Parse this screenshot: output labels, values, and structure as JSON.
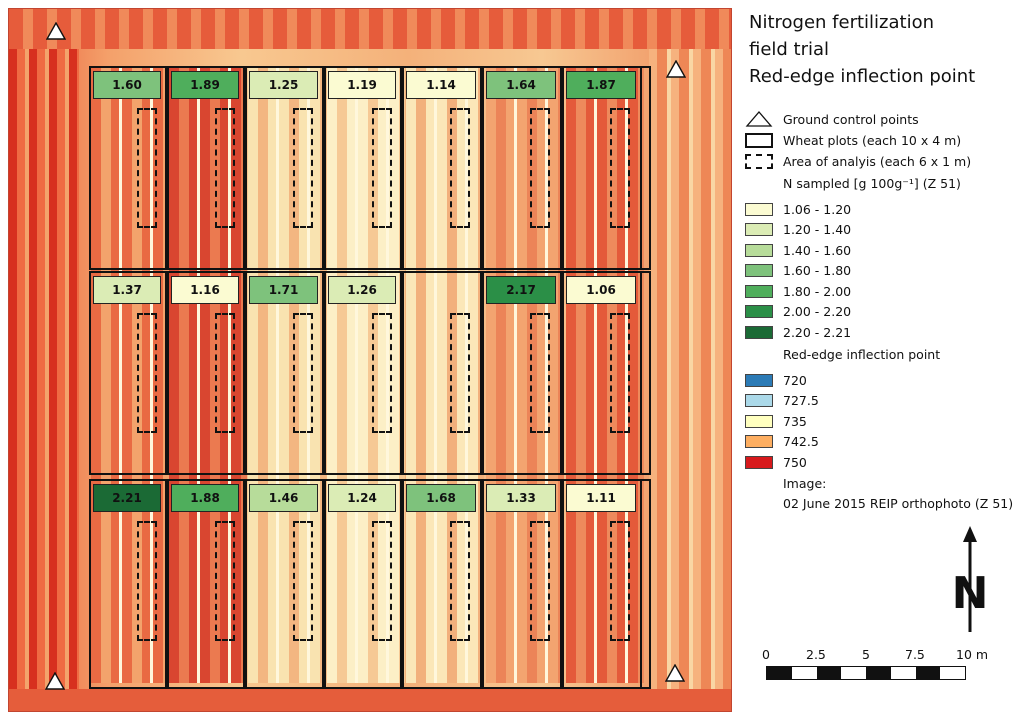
{
  "legend": {
    "title_lines": [
      "Nitrogen fertilization",
      "field trial",
      "Red-edge inflection point"
    ],
    "gcp_label": "Ground control points",
    "plots_label": "Wheat plots (each 10 x 4 m)",
    "aoa_label": "Area of analyis (each 6 x 1 m)",
    "n_heading": "N sampled [g 100g⁻¹] (Z 51)",
    "n_classes": [
      {
        "label": "1.06 - 1.20",
        "color": "#fbfbd2"
      },
      {
        "label": "1.20 - 1.40",
        "color": "#dbecb5"
      },
      {
        "label": "1.40 - 1.60",
        "color": "#b7dc9a"
      },
      {
        "label": "1.60 - 1.80",
        "color": "#7ec27c"
      },
      {
        "label": "1.80 - 2.00",
        "color": "#4fae5c"
      },
      {
        "label": "2.00 - 2.20",
        "color": "#2b8f47"
      },
      {
        "label": "2.20 - 2.21",
        "color": "#1b6a35"
      }
    ],
    "reip_heading": "Red-edge inflection point",
    "reip_classes": [
      {
        "label": "720",
        "color": "#2c7bb6"
      },
      {
        "label": "727.5",
        "color": "#abd9e9"
      },
      {
        "label": "735",
        "color": "#ffffbf"
      },
      {
        "label": "742.5",
        "color": "#fdae61"
      },
      {
        "label": "750",
        "color": "#d7191c"
      }
    ],
    "image_label": "Image:",
    "image_desc": "02 June 2015 REIP orthophoto (Z 51)"
  },
  "north_label": "N",
  "scale": {
    "ticks": [
      "0",
      "2.5",
      "5",
      "7.5",
      "10 m"
    ]
  },
  "plots": {
    "rows": [
      [
        1.6,
        1.89,
        1.25,
        1.19,
        1.14,
        1.64,
        1.87
      ],
      [
        1.37,
        1.16,
        1.71,
        1.26,
        null,
        2.17,
        1.06
      ],
      [
        2.21,
        1.88,
        1.46,
        1.24,
        1.68,
        1.33,
        1.11
      ]
    ],
    "labels": [
      [
        "1.60",
        "1.89",
        "1.25",
        "1.19",
        "1.14",
        "1.64",
        "1.87"
      ],
      [
        "1.37",
        "1.16",
        "1.71",
        "1.26",
        "",
        "2.17",
        "1.06"
      ],
      [
        "2.21",
        "1.88",
        "1.46",
        "1.24",
        "1.68",
        "1.33",
        "1.11"
      ]
    ]
  },
  "gcp_count": 4
}
